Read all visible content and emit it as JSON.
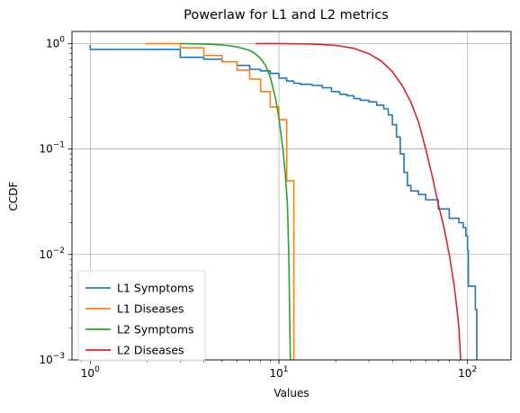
{
  "chart_data": {
    "type": "line",
    "title": "Powerlaw for L1 and L2 metrics",
    "xlabel": "Values",
    "ylabel": "CCDF",
    "xscale": "log",
    "yscale": "log",
    "xlim": [
      0.8,
      170
    ],
    "ylim": [
      0.001,
      1.3
    ],
    "grid": true,
    "legend_position": "lower-left",
    "x_ticks": [
      {
        "value": 1,
        "base": "10",
        "exp": "0"
      },
      {
        "value": 10,
        "base": "10",
        "exp": "1"
      },
      {
        "value": 100,
        "base": "10",
        "exp": "2"
      }
    ],
    "y_ticks": [
      {
        "value": 0.001,
        "base": "10",
        "exp": "−3"
      },
      {
        "value": 0.01,
        "base": "10",
        "exp": "−2"
      },
      {
        "value": 0.1,
        "base": "10",
        "exp": "−1"
      },
      {
        "value": 1,
        "base": "10",
        "exp": "0"
      }
    ],
    "series": [
      {
        "name": "L1 Symptoms",
        "color": "#1f77b4",
        "step": true,
        "x": [
          1,
          1,
          2,
          3,
          4,
          5,
          6,
          7,
          8,
          9,
          10,
          11,
          12,
          13,
          15,
          17,
          19,
          21,
          23,
          25,
          27,
          30,
          33,
          36,
          38,
          40,
          42,
          44,
          46,
          48,
          50,
          55,
          60,
          70,
          80,
          90,
          95,
          98,
          100,
          101,
          110,
          112
        ],
        "y": [
          0.97,
          0.88,
          0.88,
          0.74,
          0.71,
          0.67,
          0.62,
          0.57,
          0.55,
          0.52,
          0.47,
          0.44,
          0.42,
          0.41,
          0.4,
          0.38,
          0.35,
          0.33,
          0.32,
          0.3,
          0.29,
          0.28,
          0.26,
          0.24,
          0.21,
          0.17,
          0.13,
          0.09,
          0.06,
          0.045,
          0.04,
          0.037,
          0.033,
          0.027,
          0.022,
          0.02,
          0.018,
          0.015,
          0.011,
          0.005,
          0.003,
          0.001
        ]
      },
      {
        "name": "L1 Diseases",
        "color": "#ff7f0e",
        "step": true,
        "x": [
          2,
          2,
          3,
          4,
          5,
          6,
          7,
          8,
          9,
          10,
          11,
          12
        ],
        "y": [
          0.97,
          1.0,
          0.91,
          0.77,
          0.67,
          0.56,
          0.46,
          0.35,
          0.25,
          0.19,
          0.05,
          0.001
        ]
      },
      {
        "name": "L2 Symptoms",
        "color": "#2ca02c",
        "step": false,
        "x": [
          3,
          4,
          5,
          6,
          7,
          7.5,
          8,
          8.5,
          9,
          9.3,
          9.6,
          9.9,
          10.2,
          10.5,
          10.8,
          11.1,
          11.3,
          11.5
        ],
        "y": [
          1.0,
          0.99,
          0.97,
          0.93,
          0.86,
          0.8,
          0.72,
          0.62,
          0.48,
          0.38,
          0.3,
          0.22,
          0.15,
          0.1,
          0.06,
          0.03,
          0.009,
          0.001
        ]
      },
      {
        "name": "L2 Diseases",
        "color": "#d62728",
        "step": false,
        "x": [
          7.5,
          10,
          15,
          20,
          25,
          30,
          35,
          40,
          45,
          50,
          55,
          60,
          65,
          70,
          75,
          80,
          85,
          88,
          90,
          92
        ],
        "y": [
          1.0,
          1.0,
          0.99,
          0.96,
          0.9,
          0.8,
          0.68,
          0.54,
          0.4,
          0.28,
          0.18,
          0.1,
          0.055,
          0.03,
          0.018,
          0.01,
          0.005,
          0.003,
          0.002,
          0.001
        ]
      }
    ]
  }
}
